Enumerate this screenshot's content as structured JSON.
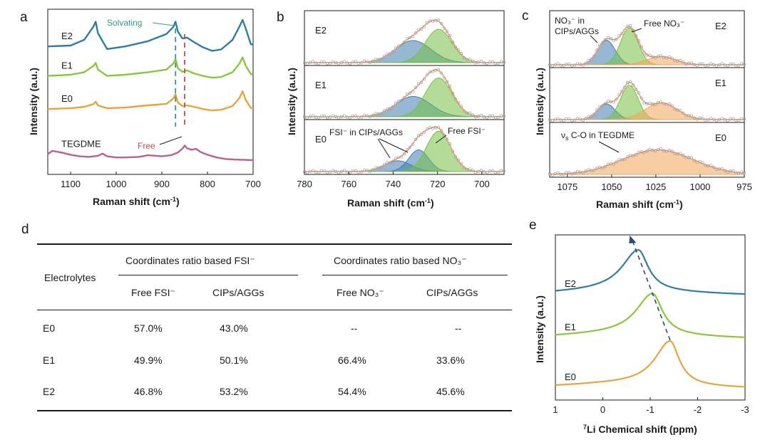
{
  "panel_letters": {
    "a": "a",
    "b": "b",
    "c": "c",
    "d": "d",
    "e": "e"
  },
  "chart_data": [
    {
      "id": "a",
      "type": "line",
      "title": "",
      "xlabel": "Raman shift (cm",
      "xlabel_sup": "-1",
      "xlabel_end": ")",
      "ylabel": "Intensity (a.u.)",
      "xlim": [
        1150,
        700
      ],
      "xticks": [
        1100,
        1000,
        900,
        800,
        700
      ],
      "annotations": {
        "solvating": "Solvating",
        "free": "Free",
        "solvating_x": 870,
        "free_x": 850
      },
      "series": [
        {
          "name": "E2",
          "color": "#2f7ca3",
          "x": [
            1150,
            1100,
            1070,
            1050,
            1045,
            1040,
            1020,
            980,
            930,
            890,
            875,
            870,
            865,
            855,
            845,
            830,
            810,
            790,
            770,
            745,
            730,
            723,
            716,
            705,
            700
          ],
          "y": [
            0.4,
            0.42,
            0.55,
            0.85,
            0.96,
            0.7,
            0.34,
            0.4,
            0.52,
            0.68,
            0.84,
            0.96,
            0.74,
            0.58,
            0.6,
            0.5,
            0.38,
            0.3,
            0.33,
            0.55,
            0.85,
            1.0,
            0.8,
            0.45,
            0.44
          ]
        },
        {
          "name": "E1",
          "color": "#8bc53f",
          "x": [
            1150,
            1100,
            1070,
            1050,
            1045,
            1040,
            1020,
            980,
            930,
            890,
            875,
            870,
            865,
            855,
            845,
            830,
            810,
            790,
            770,
            745,
            730,
            723,
            716,
            705,
            700
          ],
          "y": [
            0.45,
            0.48,
            0.55,
            0.72,
            0.8,
            0.62,
            0.45,
            0.48,
            0.55,
            0.62,
            0.78,
            0.9,
            0.66,
            0.56,
            0.6,
            0.52,
            0.45,
            0.4,
            0.42,
            0.55,
            0.78,
            0.95,
            0.72,
            0.5,
            0.48
          ]
        },
        {
          "name": "E0",
          "color": "#e8a33d",
          "x": [
            1150,
            1100,
            1070,
            1050,
            1045,
            1040,
            1020,
            980,
            930,
            890,
            875,
            870,
            865,
            855,
            845,
            830,
            810,
            790,
            770,
            745,
            730,
            723,
            716,
            705,
            700
          ],
          "y": [
            0.42,
            0.44,
            0.48,
            0.55,
            0.62,
            0.52,
            0.44,
            0.46,
            0.52,
            0.56,
            0.7,
            0.82,
            0.6,
            0.5,
            0.52,
            0.48,
            0.42,
            0.38,
            0.4,
            0.5,
            0.72,
            0.9,
            0.66,
            0.45,
            0.44
          ]
        },
        {
          "name": "TEGDME",
          "color": "#b8618d",
          "x": [
            1150,
            1140,
            1120,
            1100,
            1080,
            1060,
            1040,
            1030,
            1020,
            1000,
            980,
            950,
            930,
            900,
            880,
            865,
            855,
            850,
            845,
            835,
            825,
            815,
            800,
            780,
            760,
            740,
            720,
            700
          ],
          "y": [
            0.3,
            0.42,
            0.36,
            0.28,
            0.22,
            0.2,
            0.24,
            0.32,
            0.22,
            0.18,
            0.18,
            0.2,
            0.26,
            0.22,
            0.26,
            0.36,
            0.5,
            0.62,
            0.52,
            0.46,
            0.5,
            0.38,
            0.28,
            0.18,
            0.12,
            0.1,
            0.09,
            0.08
          ]
        }
      ]
    },
    {
      "id": "b",
      "type": "area",
      "title": "",
      "xlabel": "Raman shift (cm",
      "xlabel_sup": "-1",
      "xlabel_end": ")",
      "ylabel": "Intensity (a.u.)",
      "xlim": [
        780,
        690
      ],
      "xticks": [
        780,
        760,
        740,
        720,
        700
      ],
      "annotations": {
        "fsi_cips": "FSI⁻ in CIPs/AGGs",
        "free_fsi": "Free FSI⁻"
      },
      "subpanels": [
        {
          "label": "E2",
          "peaks": [
            {
              "name": "CIPs/AGGs",
              "center": 731,
              "amp": 0.45,
              "width": 8,
              "color": "#3f7db0"
            },
            {
              "name": "Free FSI⁻",
              "center": 719.5,
              "amp": 0.68,
              "width": 6,
              "color": "#76c043"
            }
          ]
        },
        {
          "label": "E1",
          "peaks": [
            {
              "name": "CIPs/AGGs",
              "center": 731,
              "amp": 0.42,
              "width": 8,
              "color": "#3f7db0"
            },
            {
              "name": "Free FSI⁻",
              "center": 719.5,
              "amp": 0.8,
              "width": 6,
              "color": "#76c043"
            }
          ]
        },
        {
          "label": "E0",
          "peaks": [
            {
              "name": "CIPs/AGGs 1",
              "center": 738,
              "amp": 0.22,
              "width": 6,
              "color": "#3f7db0"
            },
            {
              "name": "CIPs/AGGs 2",
              "center": 728.5,
              "amp": 0.44,
              "width": 4.5,
              "color": "#3f7db0"
            },
            {
              "name": "Free FSI⁻",
              "center": 719.5,
              "amp": 0.82,
              "width": 5.5,
              "color": "#76c043"
            }
          ]
        }
      ]
    },
    {
      "id": "c",
      "type": "area",
      "title": "",
      "xlabel": "Raman shift (cm",
      "xlabel_sup": "-1",
      "xlabel_end": ")",
      "ylabel": "Intensity (a.u.)",
      "xlim": [
        1085,
        975
      ],
      "xticks": [
        1075,
        1050,
        1025,
        1000,
        975
      ],
      "annotations": {
        "no3_cips_1": "NO₃⁻ in",
        "no3_cips_2": "CIPs/AGGs",
        "free_no3": "Free NO₃⁻",
        "vs_pre": "ν",
        "vs_sub": "s",
        "vs_post": " C-O in TEGDME"
      },
      "subpanels": [
        {
          "label": "E2",
          "peaks": [
            {
              "name": "NO₃⁻ in CIPs/AGGs",
              "center": 1053,
              "amp": 0.48,
              "width": 5,
              "color": "#3f7db0"
            },
            {
              "name": "Free NO₃⁻",
              "center": 1040,
              "amp": 0.72,
              "width": 5,
              "color": "#76c043"
            },
            {
              "name": "C-O",
              "center": 1022,
              "amp": 0.16,
              "width": 8,
              "color": "#f0a65a"
            }
          ]
        },
        {
          "label": "E1",
          "peaks": [
            {
              "name": "NO₃⁻ in CIPs/AGGs",
              "center": 1053,
              "amp": 0.32,
              "width": 5,
              "color": "#3f7db0"
            },
            {
              "name": "Free NO₃⁻",
              "center": 1040,
              "amp": 0.7,
              "width": 5,
              "color": "#76c043"
            },
            {
              "name": "C-O",
              "center": 1022,
              "amp": 0.34,
              "width": 9,
              "color": "#f0a65a"
            }
          ]
        },
        {
          "label": "E0",
          "peaks": [
            {
              "name": "C-O",
              "center": 1024,
              "amp": 0.5,
              "width": 20,
              "color": "#f0a65a"
            }
          ]
        }
      ]
    },
    {
      "id": "d",
      "type": "table",
      "header": {
        "col0": "Electrolytes",
        "group1": "Coordinates ratio based FSI⁻",
        "group2": "Coordinates ratio based NO₃⁻",
        "sub": [
          "Free FSI⁻",
          "CIPs/AGGs",
          "Free NO₃⁻",
          "CIPs/AGGs"
        ]
      },
      "rows": [
        [
          "E0",
          "57.0%",
          "43.0%",
          "--",
          "--"
        ],
        [
          "E1",
          "49.9%",
          "50.1%",
          "66.4%",
          "33.6%"
        ],
        [
          "E2",
          "46.8%",
          "53.2%",
          "54.4%",
          "45.6%"
        ]
      ]
    },
    {
      "id": "e",
      "type": "line",
      "title": "",
      "xlabel_pre": "7",
      "xlabel": "Li Chemical shift (ppm)",
      "ylabel": "Intensity (a.u.)",
      "xlim": [
        1,
        -3
      ],
      "xticks": [
        1,
        0,
        -1,
        -2,
        -3
      ],
      "series": [
        {
          "name": "E2",
          "color": "#2f7ca3",
          "peak": -0.75,
          "width": 0.28
        },
        {
          "name": "E1",
          "color": "#8bc53f",
          "peak": -1.05,
          "width": 0.28
        },
        {
          "name": "E0",
          "color": "#e8a33d",
          "peak": -1.42,
          "width": 0.26
        }
      ]
    }
  ]
}
